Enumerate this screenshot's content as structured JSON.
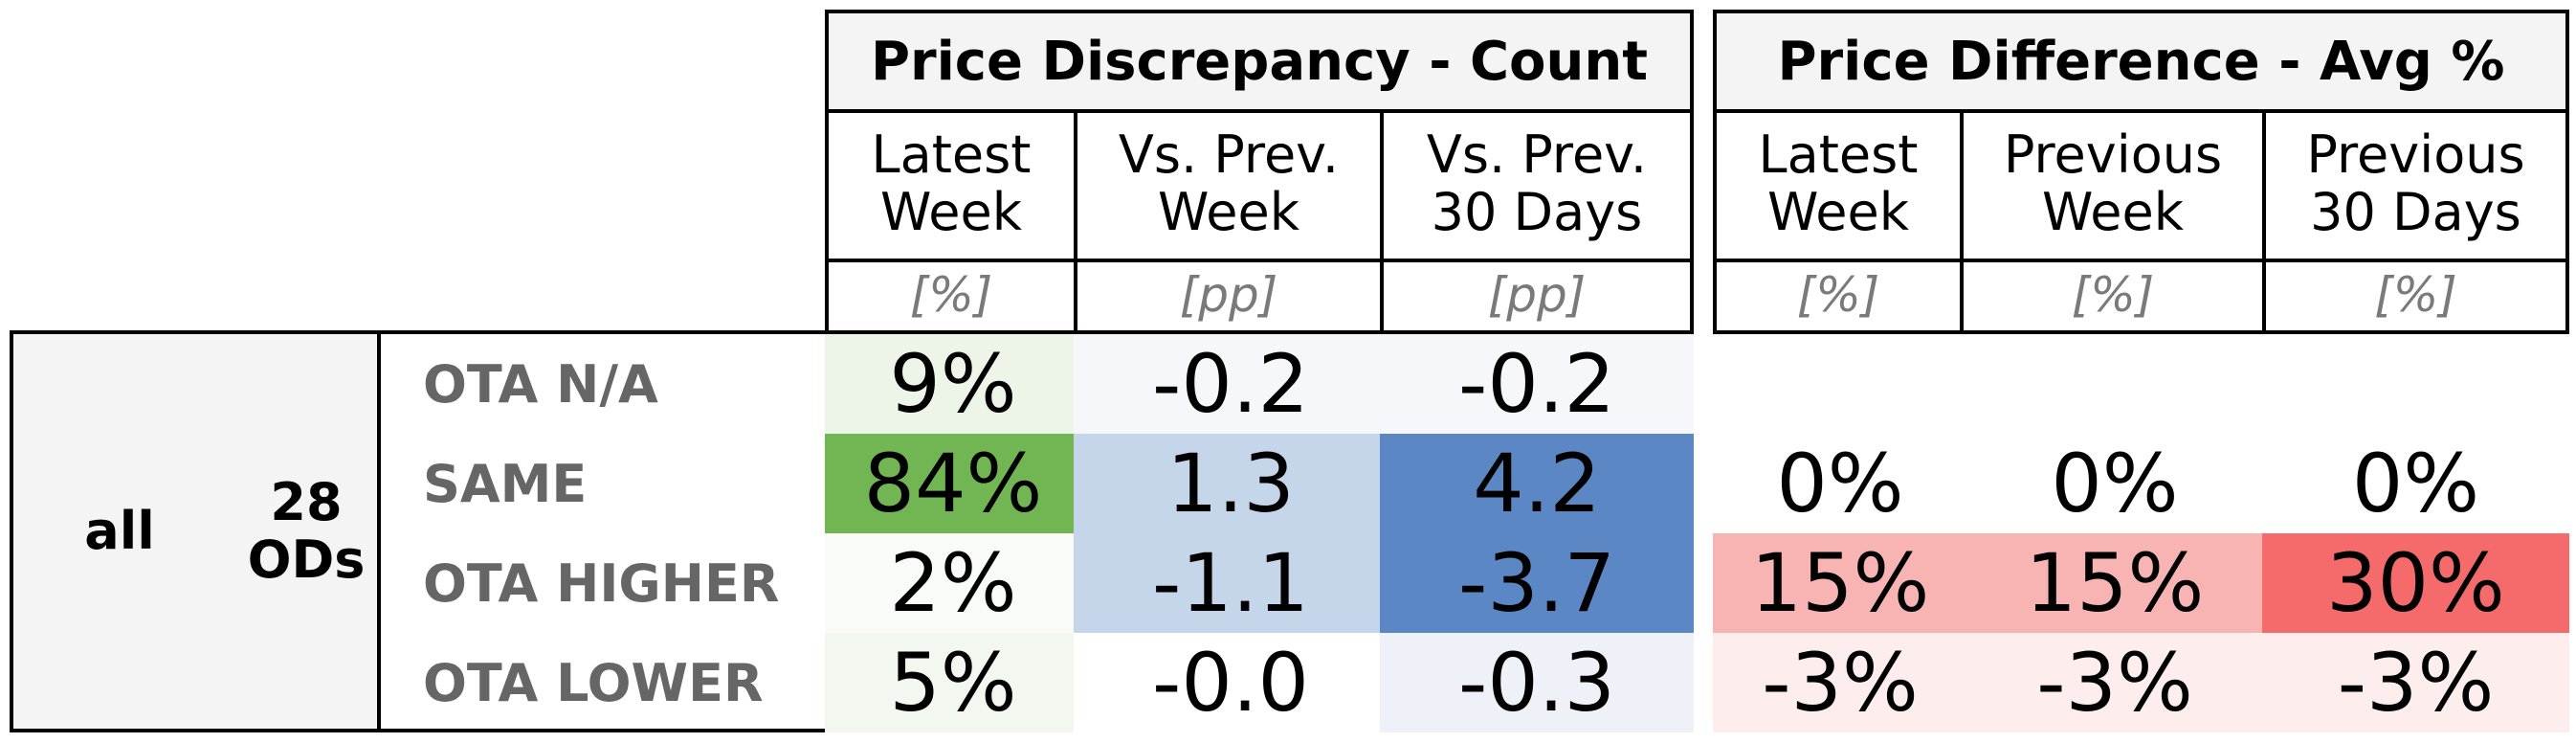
{
  "header_rows": {
    "left_title": "Price Discrepancy - Count",
    "right_title": "Price Difference - Avg %",
    "left_columns": [
      {
        "label": "Latest\nWeek",
        "unit": "[%]"
      },
      {
        "label": "Vs. Prev.\nWeek",
        "unit": "[pp]"
      },
      {
        "label": "Vs. Prev.\n30 Days",
        "unit": "[pp]"
      }
    ],
    "right_columns": [
      {
        "label": "Latest\nWeek",
        "unit": "[%]"
      },
      {
        "label": "Previous\nWeek",
        "unit": "[%]"
      },
      {
        "label": "Previous\n30 Days",
        "unit": "[%]"
      }
    ]
  },
  "group": {
    "label1": "all",
    "label2": "28\nODs"
  },
  "chart_data": {
    "type": "table",
    "rows": [
      "OTA N/A",
      "SAME",
      "OTA HIGHER",
      "OTA LOWER"
    ],
    "count_table": [
      [
        "9%",
        "-0.2",
        "-0.2"
      ],
      [
        "84%",
        "1.3",
        "4.2"
      ],
      [
        "2%",
        "-1.1",
        "-3.7"
      ],
      [
        "5%",
        "-0.0",
        "-0.3"
      ]
    ],
    "count_colors": [
      [
        "#edf5e8",
        "#f5f7fb",
        "#f5f7fb"
      ],
      [
        "#72b653",
        "#c6d6ea",
        "#5b87c4"
      ],
      [
        "#f9fbf8",
        "#c6d6ea",
        "#5b87c4"
      ],
      [
        "#f2f7ef",
        "#ffffff",
        "#eef2f8"
      ]
    ],
    "diff_table": [
      [
        "",
        "",
        ""
      ],
      [
        "0%",
        "0%",
        "0%"
      ],
      [
        "15%",
        "15%",
        "30%"
      ],
      [
        "-3%",
        "-3%",
        "-3%"
      ]
    ],
    "diff_colors": [
      [
        "#ffffff",
        "#ffffff",
        "#ffffff"
      ],
      [
        "#ffffff",
        "#ffffff",
        "#ffffff"
      ],
      [
        "#f8b3b3",
        "#f8b3b3",
        "#f56b6b"
      ],
      [
        "#fdeded",
        "#fdeded",
        "#fdeded"
      ]
    ]
  }
}
